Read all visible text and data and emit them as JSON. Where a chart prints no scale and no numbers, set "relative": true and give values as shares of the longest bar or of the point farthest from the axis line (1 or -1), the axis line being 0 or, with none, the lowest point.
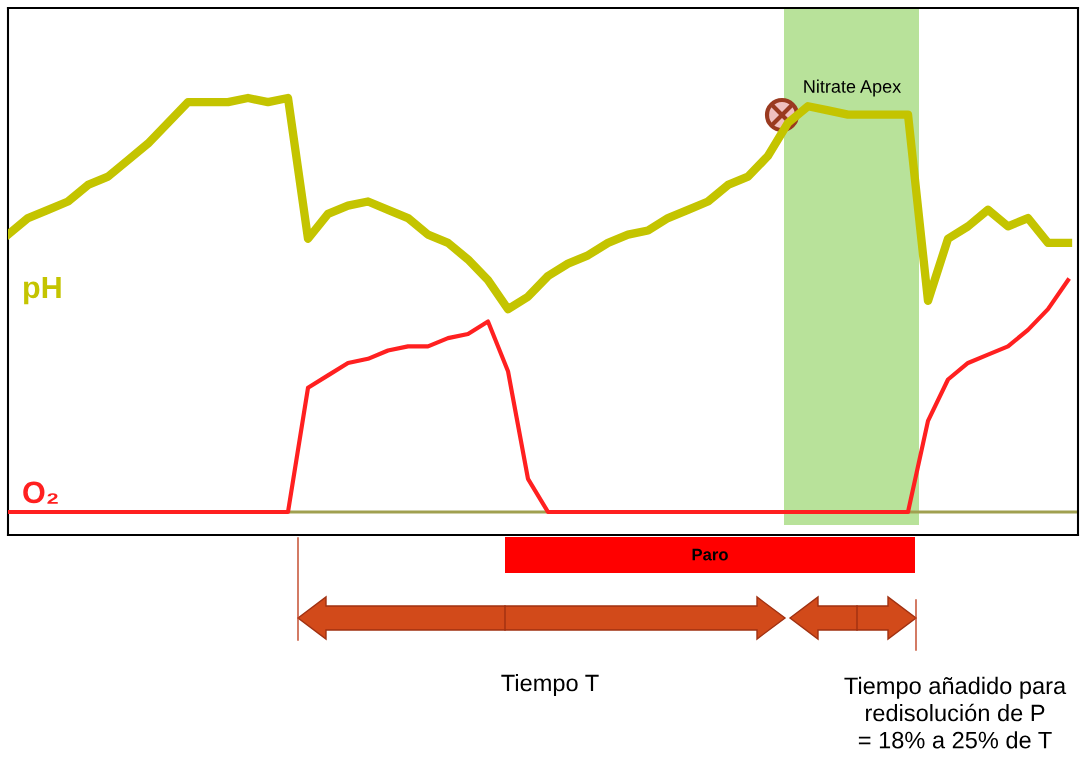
{
  "chart_data": {
    "type": "line",
    "relative": true,
    "categories": [
      null,
      null,
      null,
      null,
      null,
      null,
      null,
      null,
      null,
      null,
      null,
      null,
      null,
      null,
      null,
      null,
      null,
      null,
      null,
      null,
      null,
      null,
      null,
      null,
      null,
      null,
      null,
      null,
      null,
      null,
      null,
      null,
      null,
      null,
      null,
      null,
      null,
      null,
      null,
      null,
      null,
      null,
      null,
      null,
      null,
      null,
      null,
      null,
      null,
      null,
      null,
      null,
      null,
      null
    ],
    "series": [
      {
        "name": "pH",
        "color": "#c4c400",
        "values": [
          0.67,
          0.71,
          0.73,
          0.75,
          0.79,
          0.81,
          0.85,
          0.89,
          0.94,
          0.99,
          0.99,
          0.99,
          1,
          0.99,
          1,
          0.66,
          0.72,
          0.74,
          0.75,
          0.73,
          0.71,
          0.67,
          0.65,
          0.61,
          0.56,
          0.49,
          0.52,
          0.57,
          0.6,
          0.62,
          0.65,
          0.67,
          0.68,
          0.71,
          0.73,
          0.75,
          0.79,
          0.81,
          0.86,
          0.94,
          0.98,
          0.97,
          0.96,
          0.96,
          0.96,
          0.96,
          0.51,
          0.66,
          0.69,
          0.73,
          0.69,
          0.71,
          0.65,
          0.65
        ]
      },
      {
        "name": "O₂",
        "color": "#ff2020",
        "values": [
          0,
          0,
          0,
          0,
          0,
          0,
          0,
          0,
          0,
          0,
          0,
          0,
          0,
          0,
          0,
          0.3,
          0.33,
          0.36,
          0.37,
          0.39,
          0.4,
          0.4,
          0.42,
          0.43,
          0.46,
          0.34,
          0.08,
          0,
          0,
          0,
          0,
          0,
          0,
          0,
          0,
          0,
          0,
          0,
          0,
          0,
          0,
          0,
          0,
          0,
          0,
          0,
          0.22,
          0.32,
          0.36,
          0.38,
          0.4,
          0.44,
          0.49,
          0.56
        ]
      }
    ],
    "ref_lines": [
      {
        "axis": "y",
        "value": 0,
        "color": "#a0a050"
      }
    ],
    "annotations": [
      "Nitrate Apex",
      "Paro",
      "Tiempo T",
      "Tiempo añadido para\nredisolución de P\n= 18% a 25% de T"
    ],
    "legend": false,
    "marker": "none",
    "line_style": "solid"
  }
}
